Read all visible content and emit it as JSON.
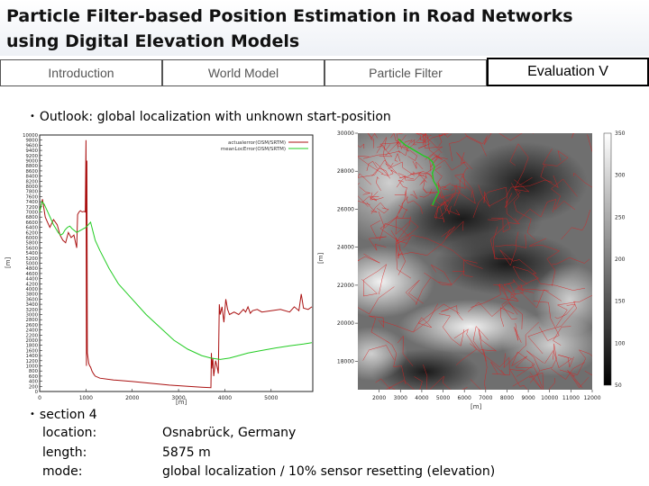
{
  "slide": {
    "title_line1": "Particle Filter-based Position Estimation in Road Networks",
    "title_line2": "using Digital Elevation Models"
  },
  "nav": {
    "tabs": [
      {
        "label": "Introduction"
      },
      {
        "label": "World Model"
      },
      {
        "label": "Particle Filter"
      },
      {
        "label": "Evaluation V"
      }
    ],
    "active_index": 3
  },
  "outlook": {
    "text": "Outlook: global localization with unknown start-position"
  },
  "section": {
    "heading": "section 4",
    "rows": [
      {
        "label": "location:",
        "value": "Osnabrück, Germany"
      },
      {
        "label": "length:",
        "value": "5875 m"
      },
      {
        "label": "mode:",
        "value": "global localization  / 10% sensor resetting (elevation)"
      }
    ]
  },
  "chart_data": [
    {
      "type": "line",
      "title": "",
      "xlabel": "[m]",
      "ylabel": "[m]",
      "xlim": [
        0,
        5900
      ],
      "ylim": [
        0,
        10000
      ],
      "x_ticks": [
        0,
        1000,
        2000,
        3000,
        4000,
        5000
      ],
      "y_ticks": [
        0,
        200,
        400,
        600,
        800,
        1000,
        1200,
        1400,
        1600,
        1800,
        2000,
        2200,
        2400,
        2600,
        2800,
        3000,
        3200,
        3400,
        3600,
        3800,
        4000,
        4200,
        4400,
        4600,
        4800,
        5000,
        5200,
        5400,
        5600,
        5800,
        6000,
        6200,
        6400,
        6600,
        6800,
        7000,
        7200,
        7400,
        7600,
        7800,
        8000,
        8200,
        8400,
        8600,
        8800,
        9000,
        9200,
        9400,
        9600,
        9800,
        10000
      ],
      "legend_position": "top-right",
      "series": [
        {
          "name": "actualerror(OSM/SRTM)",
          "color": "#aa1111",
          "x": [
            0,
            60,
            120,
            170,
            220,
            300,
            380,
            440,
            500,
            560,
            620,
            680,
            740,
            800,
            820,
            850,
            880,
            920,
            960,
            985,
            1000,
            1010,
            1020,
            1030,
            1045,
            1060,
            1080,
            1100,
            1130,
            1160,
            1200,
            1300,
            1600,
            2000,
            2400,
            2800,
            3200,
            3500,
            3700,
            3710,
            3720,
            3740,
            3760,
            3800,
            3840,
            3860,
            3880,
            3900,
            3940,
            3980,
            4020,
            4060,
            4100,
            4200,
            4300,
            4400,
            4450,
            4500,
            4550,
            4600,
            4700,
            4800,
            5000,
            5200,
            5400,
            5500,
            5600,
            5650,
            5700,
            5800,
            5880
          ],
          "y": [
            7000,
            7500,
            6800,
            6600,
            6400,
            6700,
            6500,
            6100,
            5900,
            5800,
            6200,
            6000,
            6100,
            5600,
            6900,
            7000,
            7050,
            7000,
            7020,
            7000,
            9800,
            1000,
            9000,
            1500,
            1300,
            1100,
            1000,
            950,
            800,
            700,
            600,
            520,
            450,
            390,
            320,
            250,
            200,
            170,
            150,
            1500,
            900,
            1300,
            600,
            1200,
            900,
            700,
            3400,
            3000,
            3300,
            2700,
            3600,
            3200,
            3000,
            3100,
            3000,
            3200,
            3100,
            3300,
            3050,
            3150,
            3200,
            3100,
            3150,
            3200,
            3100,
            3300,
            3150,
            3800,
            3250,
            3200,
            3300
          ]
        },
        {
          "name": "meanLocError(OSM/SRTM)",
          "color": "#22cc22",
          "x": [
            0,
            50,
            100,
            150,
            200,
            250,
            300,
            350,
            400,
            450,
            500,
            550,
            600,
            650,
            700,
            800,
            900,
            1000,
            1100,
            1200,
            1300,
            1500,
            1700,
            2000,
            2300,
            2600,
            2900,
            3200,
            3500,
            3700,
            3900,
            4100,
            4300,
            4500,
            4800,
            5100,
            5400,
            5700,
            5880
          ],
          "y": [
            7000,
            7400,
            7300,
            7100,
            6900,
            6700,
            6500,
            6350,
            6200,
            6100,
            6150,
            6300,
            6400,
            6450,
            6350,
            6200,
            6300,
            6400,
            6600,
            5900,
            5500,
            4800,
            4200,
            3600,
            3000,
            2500,
            2000,
            1650,
            1400,
            1300,
            1250,
            1300,
            1400,
            1500,
            1600,
            1700,
            1780,
            1850,
            1900
          ]
        }
      ]
    },
    {
      "type": "heatmap",
      "title": "",
      "xlabel": "[m]",
      "ylabel": "[m]",
      "xlim": [
        1000,
        12000
      ],
      "ylim": [
        16500,
        30000
      ],
      "x_ticks": [
        2000,
        3000,
        4000,
        5000,
        6000,
        7000,
        8000,
        9000,
        10000,
        11000,
        12000
      ],
      "y_ticks": [
        18000,
        20000,
        22000,
        24000,
        26000,
        28000,
        30000
      ],
      "colorbar_ticks": [
        50,
        100,
        150,
        200,
        250,
        300,
        350
      ],
      "colorbar_range": [
        50,
        350
      ],
      "road_color": "#dd2020",
      "track_color": "#22cc22",
      "track": {
        "x": [
          2900,
          3200,
          3500,
          3800,
          4100,
          4300,
          4500,
          4600,
          4500,
          4550,
          4700,
          4800,
          4650,
          4500
        ],
        "y": [
          29700,
          29400,
          29200,
          29000,
          28800,
          28700,
          28500,
          28200,
          27900,
          27500,
          27200,
          26900,
          26600,
          26200
        ]
      }
    }
  ]
}
